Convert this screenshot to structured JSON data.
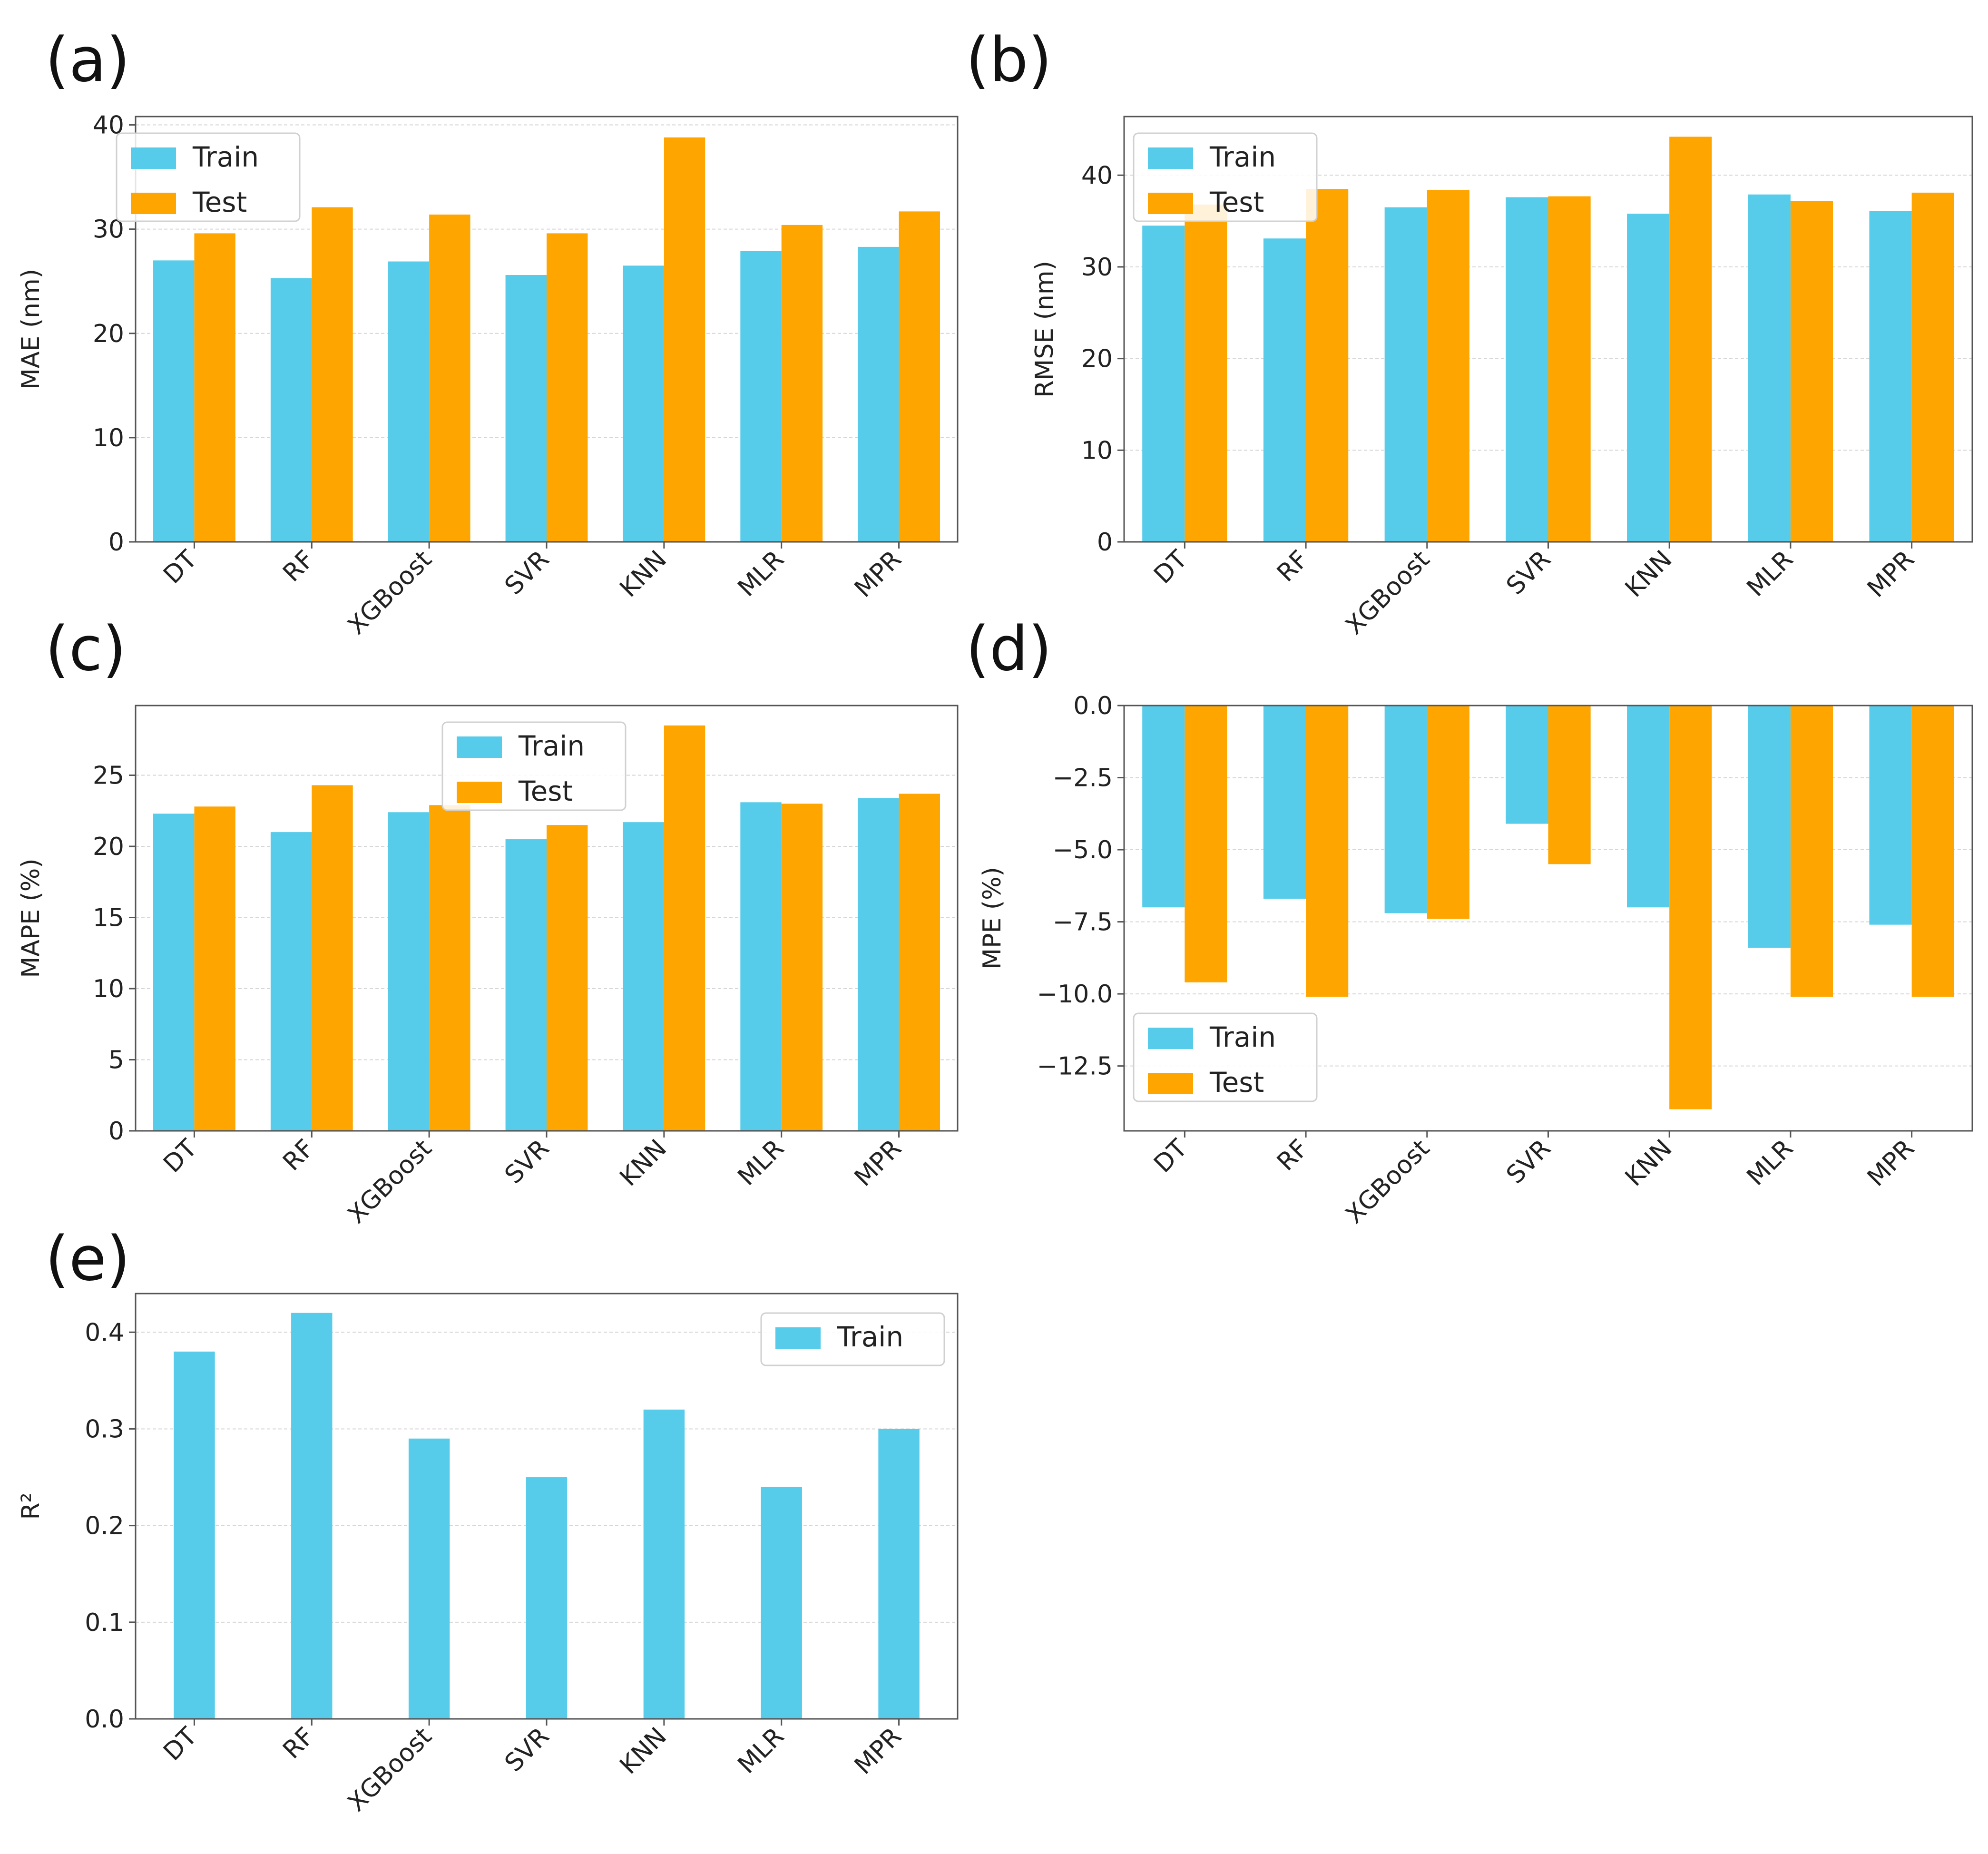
{
  "colors": {
    "train": "#56CBEA",
    "test": "#FFA500"
  },
  "chart_data": [
    {
      "type": "bar",
      "panel": "(a)",
      "ylabel": "MAE (nm)",
      "categories": [
        "DT",
        "RF",
        "XGBoost",
        "SVR",
        "KNN",
        "MLR",
        "MPR"
      ],
      "series": [
        {
          "name": "Train",
          "values": [
            27.0,
            25.3,
            26.9,
            25.6,
            26.5,
            27.9,
            28.3
          ]
        },
        {
          "name": "Test",
          "values": [
            29.6,
            32.1,
            31.4,
            29.6,
            38.8,
            30.4,
            31.7
          ]
        }
      ],
      "ylim": [
        0,
        40.8
      ],
      "yticks": [
        0,
        10,
        20,
        30,
        40
      ],
      "ytick_labels": [
        "0",
        "10",
        "20",
        "30",
        "40"
      ],
      "grid": true,
      "legend": "upper-left"
    },
    {
      "type": "bar",
      "panel": "(b)",
      "ylabel": "RMSE (nm)",
      "categories": [
        "DT",
        "RF",
        "XGBoost",
        "SVR",
        "KNN",
        "MLR",
        "MPR"
      ],
      "series": [
        {
          "name": "Train",
          "values": [
            34.5,
            33.1,
            36.5,
            37.6,
            35.8,
            37.9,
            36.1
          ]
        },
        {
          "name": "Test",
          "values": [
            36.8,
            38.5,
            38.4,
            37.7,
            44.2,
            37.2,
            38.1
          ]
        }
      ],
      "ylim": [
        0,
        46.4
      ],
      "yticks": [
        0,
        10,
        20,
        30,
        40
      ],
      "ytick_labels": [
        "0",
        "10",
        "20",
        "30",
        "40"
      ],
      "grid": true,
      "legend": "upper-left"
    },
    {
      "type": "bar",
      "panel": "(c)",
      "ylabel": "MAPE (%)",
      "categories": [
        "DT",
        "RF",
        "XGBoost",
        "SVR",
        "KNN",
        "MLR",
        "MPR"
      ],
      "series": [
        {
          "name": "Train",
          "values": [
            22.3,
            21.0,
            22.4,
            20.5,
            21.7,
            23.1,
            23.4
          ]
        },
        {
          "name": "Test",
          "values": [
            22.8,
            24.3,
            22.9,
            21.5,
            28.5,
            23.0,
            23.7
          ]
        }
      ],
      "ylim": [
        0,
        29.9
      ],
      "yticks": [
        0,
        5,
        10,
        15,
        20,
        25
      ],
      "ytick_labels": [
        "0",
        "5",
        "10",
        "15",
        "20",
        "25"
      ],
      "grid": true,
      "legend": "upper-center"
    },
    {
      "type": "bar",
      "panel": "(d)",
      "ylabel": "MPE (%)",
      "categories": [
        "DT",
        "RF",
        "XGBoost",
        "SVR",
        "KNN",
        "MLR",
        "MPR"
      ],
      "series": [
        {
          "name": "Train",
          "values": [
            -7.0,
            -6.7,
            -7.2,
            -4.1,
            -7.0,
            -8.4,
            -7.6
          ]
        },
        {
          "name": "Test",
          "values": [
            -9.6,
            -10.1,
            -7.4,
            -5.5,
            -14.0,
            -10.1,
            -10.1
          ]
        }
      ],
      "ylim": [
        -14.75,
        0
      ],
      "yticks": [
        0,
        -2.5,
        -5.0,
        -7.5,
        -10.0,
        -12.5
      ],
      "ytick_labels": [
        "0.0",
        "−2.5",
        "−5.0",
        "−7.5",
        "−10.0",
        "−12.5"
      ],
      "grid": true,
      "legend": "lower-left"
    },
    {
      "type": "bar",
      "panel": "(e)",
      "ylabel": "R²",
      "categories": [
        "DT",
        "RF",
        "XGBoost",
        "SVR",
        "KNN",
        "MLR",
        "MPR"
      ],
      "series": [
        {
          "name": "Train",
          "values": [
            0.38,
            0.42,
            0.29,
            0.25,
            0.32,
            0.24,
            0.3
          ]
        }
      ],
      "ylim": [
        0,
        0.44
      ],
      "yticks": [
        0,
        0.1,
        0.2,
        0.3,
        0.4
      ],
      "ytick_labels": [
        "0.0",
        "0.1",
        "0.2",
        "0.3",
        "0.4"
      ],
      "grid": true,
      "legend": "upper-right"
    }
  ]
}
